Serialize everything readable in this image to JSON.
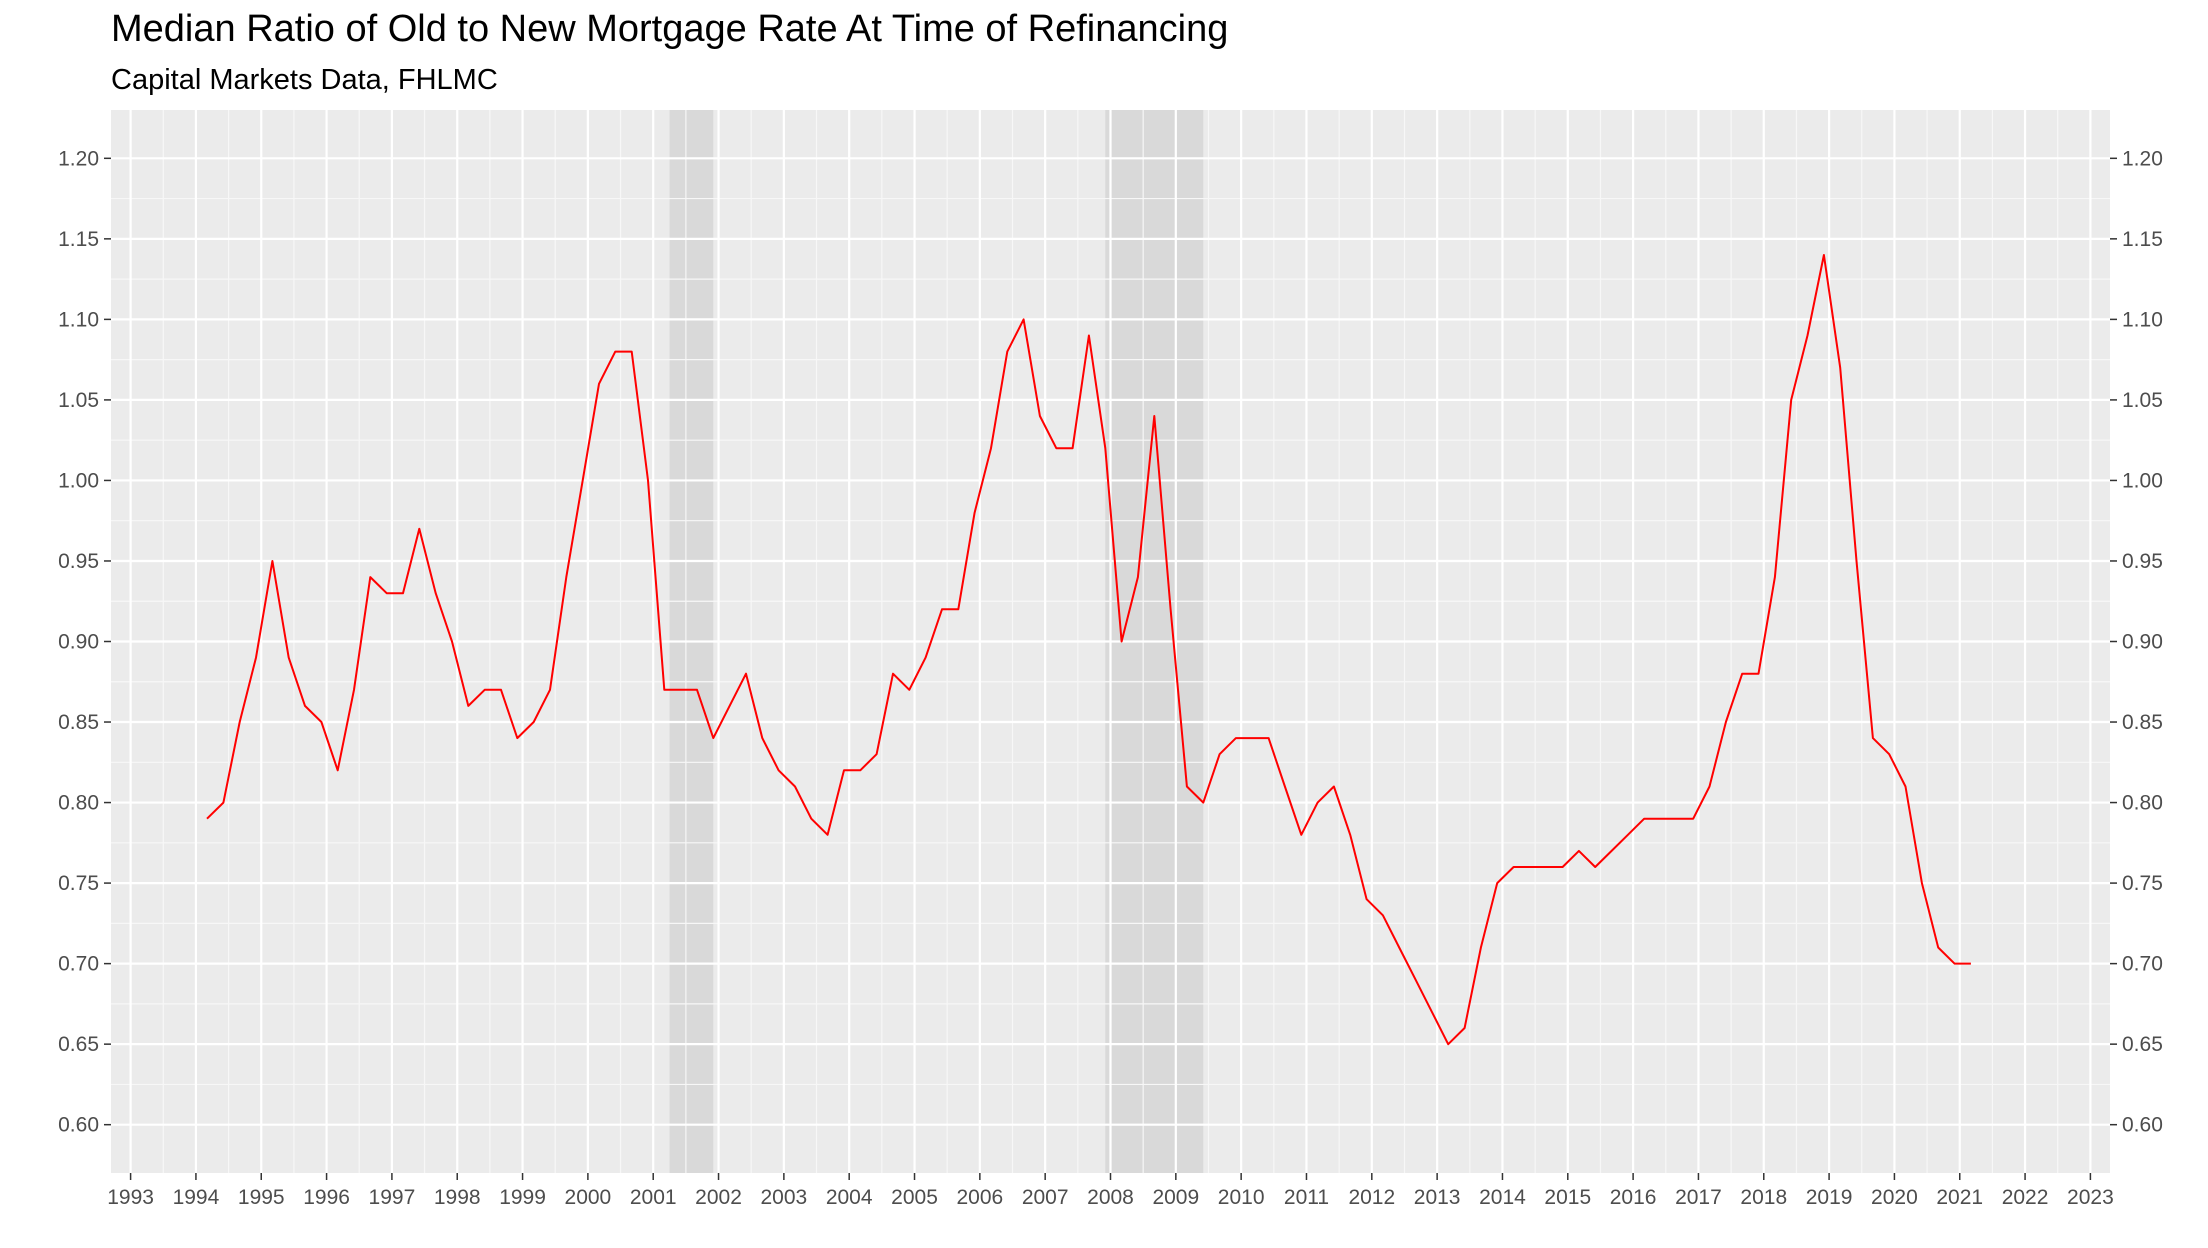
{
  "title": "Median Ratio of Old to New Mortgage Rate At Time of Refinancing",
  "subtitle": "Capital Markets Data, FHLMC",
  "chart_data": {
    "type": "line",
    "title": "Median Ratio of Old to New Mortgage Rate At Time of Refinancing",
    "subtitle": "Capital Markets Data, FHLMC",
    "xlabel": "",
    "ylabel": "",
    "xlim": [
      1992.7,
      2023.3
    ],
    "ylim": [
      0.57,
      1.23
    ],
    "x_ticks": [
      "1993",
      "1994",
      "1995",
      "1996",
      "1997",
      "1998",
      "1999",
      "2000",
      "2001",
      "2002",
      "2003",
      "2004",
      "2005",
      "2006",
      "2007",
      "2008",
      "2009",
      "2010",
      "2011",
      "2012",
      "2013",
      "2014",
      "2015",
      "2016",
      "2017",
      "2018",
      "2019",
      "2020",
      "2021",
      "2022",
      "2023"
    ],
    "y_ticks": [
      "0.60",
      "0.65",
      "0.70",
      "0.75",
      "0.80",
      "0.85",
      "0.90",
      "0.95",
      "1.00",
      "1.05",
      "1.10",
      "1.15",
      "1.20"
    ],
    "grid": true,
    "secondary_y_axis": true,
    "recession_shading": [
      [
        2001.25,
        2001.92
      ],
      [
        2007.92,
        2009.42
      ]
    ],
    "series_color": "#ff0000",
    "series": [
      {
        "name": "",
        "x": [
          1994.17,
          1994.42,
          1994.67,
          1994.92,
          1995.17,
          1995.42,
          1995.67,
          1995.92,
          1996.17,
          1996.42,
          1996.67,
          1996.92,
          1997.17,
          1997.42,
          1997.67,
          1997.92,
          1998.17,
          1998.42,
          1998.67,
          1998.92,
          1999.17,
          1999.42,
          1999.67,
          1999.92,
          2000.17,
          2000.42,
          2000.67,
          2000.92,
          2001.17,
          2001.42,
          2001.67,
          2001.92,
          2002.17,
          2002.42,
          2002.67,
          2002.92,
          2003.17,
          2003.42,
          2003.67,
          2003.92,
          2004.17,
          2004.42,
          2004.67,
          2004.92,
          2005.17,
          2005.42,
          2005.67,
          2005.92,
          2006.17,
          2006.42,
          2006.67,
          2006.92,
          2007.17,
          2007.42,
          2007.67,
          2007.92,
          2008.17,
          2008.42,
          2008.67,
          2008.92,
          2009.17,
          2009.42,
          2009.67,
          2009.92,
          2010.17,
          2010.42,
          2010.67,
          2010.92,
          2011.17,
          2011.42,
          2011.67,
          2011.92,
          2012.17,
          2012.42,
          2012.67,
          2012.92,
          2013.17,
          2013.42,
          2013.67,
          2013.92,
          2014.17,
          2014.42,
          2014.67,
          2014.92,
          2015.17,
          2015.42,
          2015.67,
          2015.92,
          2016.17,
          2016.42,
          2016.67,
          2016.92,
          2017.17,
          2017.42,
          2017.67,
          2017.92,
          2018.17,
          2018.42,
          2018.67,
          2018.92,
          2019.17,
          2019.42,
          2019.67,
          2019.92,
          2020.17,
          2020.42,
          2020.67,
          2020.92,
          2021.17
        ],
        "values": [
          0.79,
          0.8,
          0.85,
          0.89,
          0.95,
          0.89,
          0.86,
          0.85,
          0.82,
          0.87,
          0.94,
          0.93,
          0.93,
          0.97,
          0.93,
          0.9,
          0.86,
          0.87,
          0.87,
          0.84,
          0.85,
          0.87,
          0.94,
          1.0,
          1.06,
          1.08,
          1.08,
          1.0,
          0.87,
          0.87,
          0.87,
          0.84,
          0.86,
          0.88,
          0.84,
          0.82,
          0.81,
          0.79,
          0.78,
          0.82,
          0.82,
          0.83,
          0.88,
          0.87,
          0.89,
          0.92,
          0.92,
          0.98,
          1.02,
          1.08,
          1.1,
          1.04,
          1.02,
          1.02,
          1.09,
          1.02,
          0.9,
          0.94,
          1.04,
          0.92,
          0.81,
          0.8,
          0.83,
          0.84,
          0.84,
          0.84,
          0.81,
          0.78,
          0.8,
          0.81,
          0.78,
          0.74,
          0.73,
          0.71,
          0.69,
          0.67,
          0.65,
          0.66,
          0.71,
          0.75,
          0.76,
          0.76,
          0.76,
          0.76,
          0.77,
          0.76,
          0.77,
          0.78,
          0.79,
          0.79,
          0.79,
          0.79,
          0.81,
          0.85,
          0.88,
          0.88,
          0.94,
          1.05,
          1.09,
          1.14,
          1.07,
          0.95,
          0.84,
          0.83,
          0.81,
          0.75,
          0.71,
          0.7,
          0.7
        ]
      }
    ]
  }
}
